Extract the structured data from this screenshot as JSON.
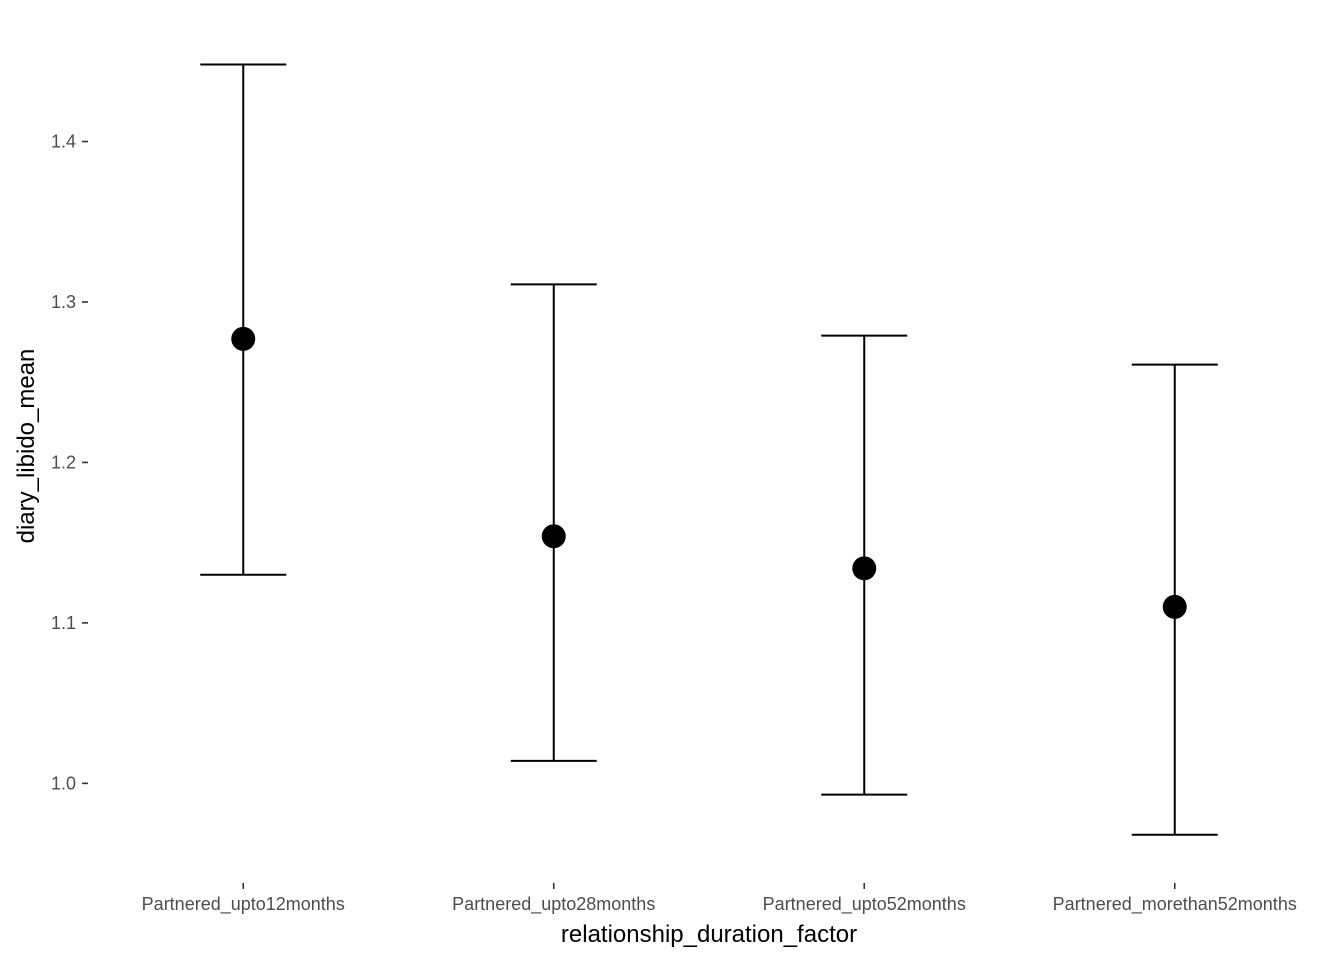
{
  "chart_data": {
    "type": "scatter",
    "subtype": "pointrange",
    "title": "",
    "xlabel": "relationship_duration_factor",
    "ylabel": "diary_libido_mean",
    "categories": [
      "Partnered_upto12months",
      "Partnered_upto28months",
      "Partnered_upto52months",
      "Partnered_morethan52months"
    ],
    "series": [
      {
        "values": [
          1.277,
          1.154,
          1.134,
          1.11
        ],
        "lower": [
          1.13,
          1.014,
          0.993,
          0.968
        ],
        "upper": [
          1.448,
          1.311,
          1.279,
          1.261
        ]
      }
    ],
    "yticks": [
      1.0,
      1.1,
      1.2,
      1.3,
      1.4
    ],
    "ytick_labels": [
      "1.0",
      "1.1",
      "1.2",
      "1.3",
      "1.4"
    ],
    "ylim": [
      0.946,
      1.472
    ],
    "grid": false,
    "legend": "none",
    "colors": {
      "mark": "#000000",
      "tick_text": "#4d4d4d",
      "tick_line": "#333333"
    }
  }
}
